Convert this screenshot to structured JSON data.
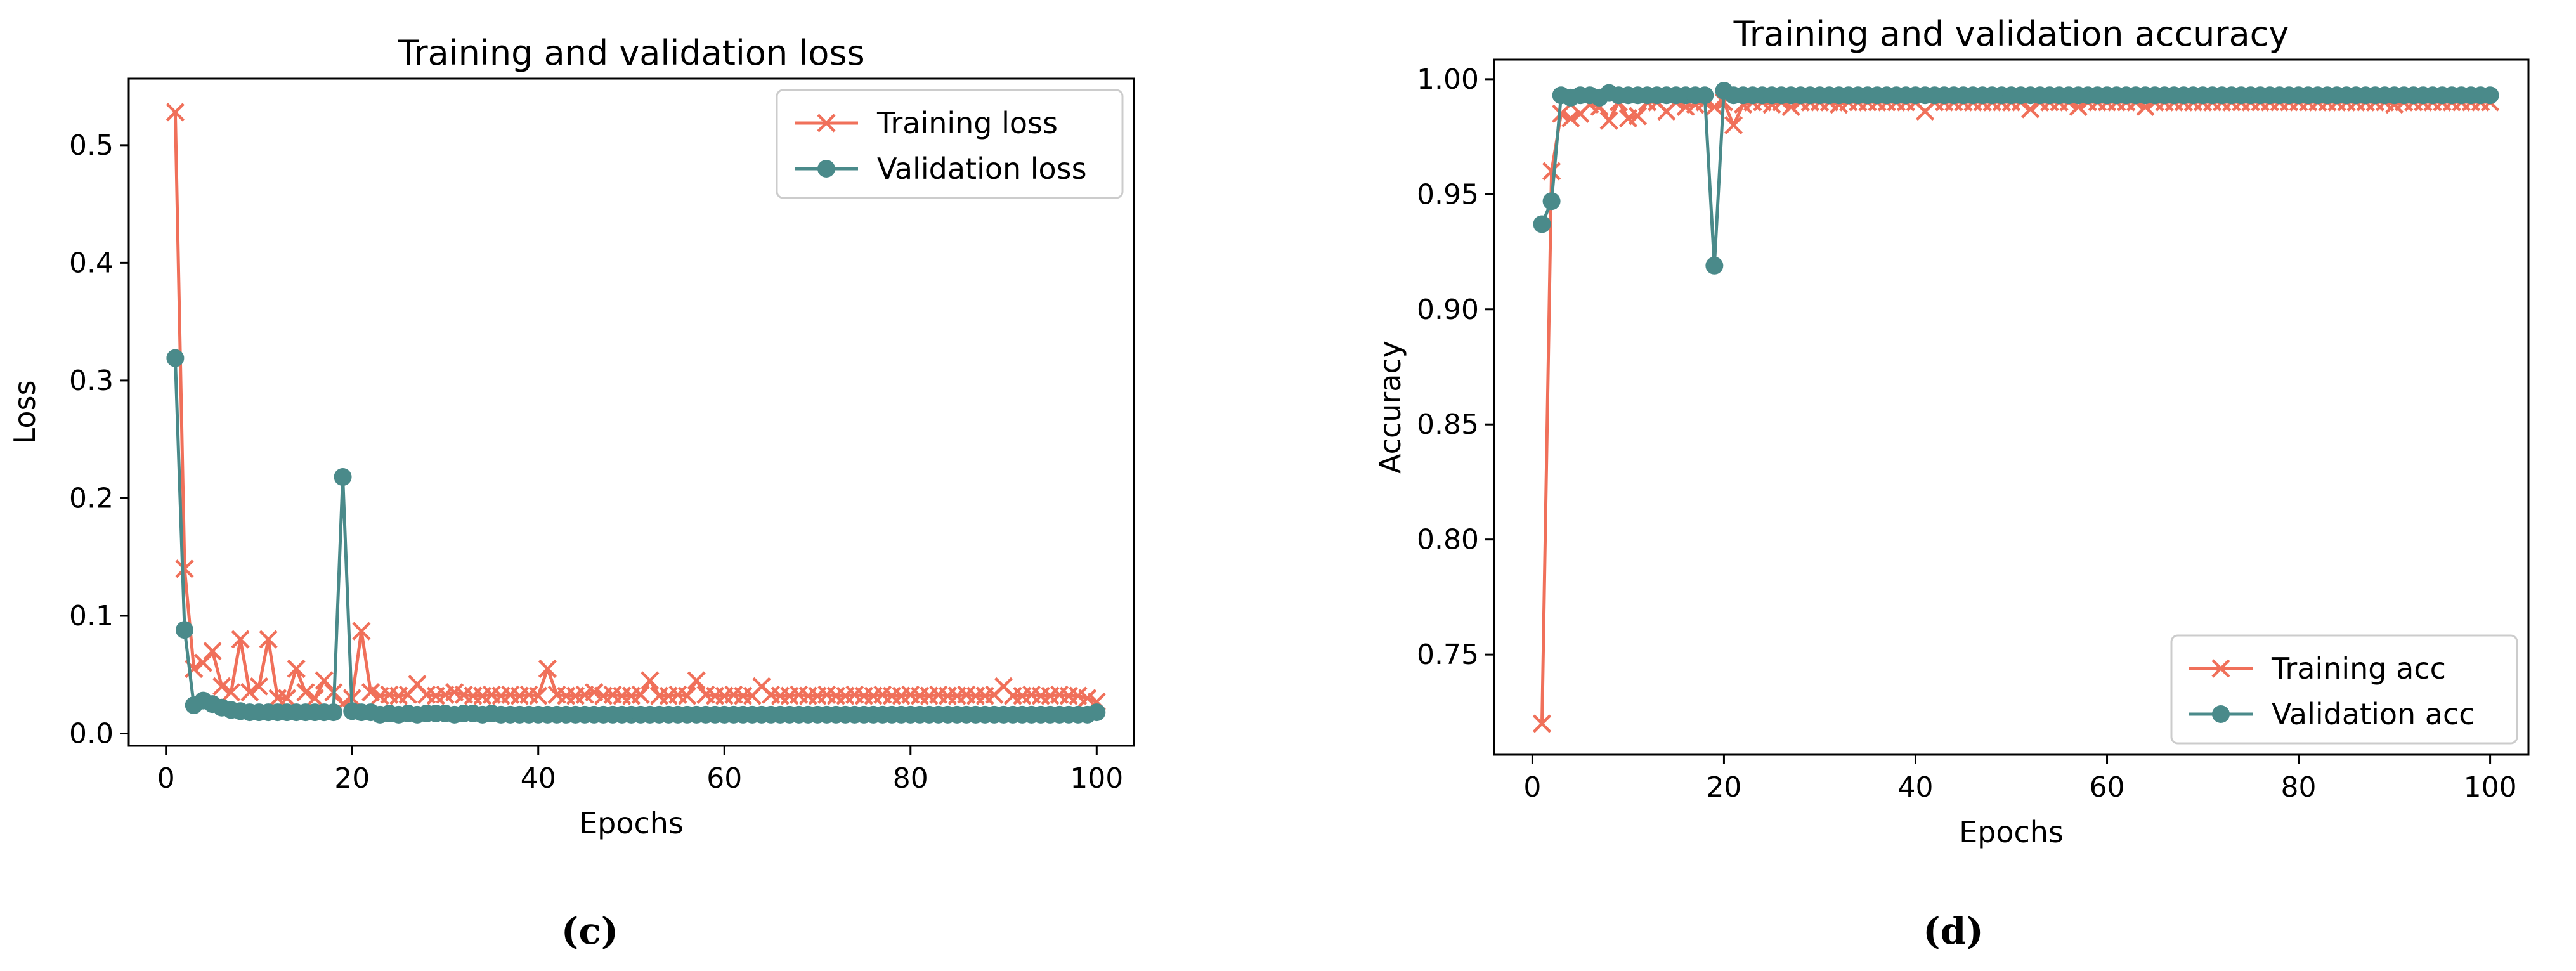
{
  "colors": {
    "training": "#f0705a",
    "validation": "#4a8a8a",
    "axis": "#000000",
    "legend_border": "#cccccc"
  },
  "chart_data": [
    {
      "type": "line",
      "caption": "(c)",
      "title": "Training and validation loss",
      "xlabel": "Epochs",
      "ylabel": "Loss",
      "xlim": [
        -4,
        104
      ],
      "ylim": [
        -0.0105,
        0.5565
      ],
      "xticks": [
        0,
        20,
        40,
        60,
        80,
        100
      ],
      "xtick_labels": [
        "0",
        "20",
        "40",
        "60",
        "80",
        "100"
      ],
      "yticks": [
        0.0,
        0.1,
        0.2,
        0.3,
        0.4,
        0.5
      ],
      "ytick_labels": [
        "0.0",
        "0.1",
        "0.2",
        "0.3",
        "0.4",
        "0.5"
      ],
      "grid": false,
      "legend_position": "top-right",
      "series": [
        {
          "name": "Training loss",
          "marker": "x",
          "color": "training",
          "x": [
            1,
            2,
            3,
            4,
            5,
            6,
            7,
            8,
            9,
            10,
            11,
            12,
            13,
            14,
            15,
            16,
            17,
            18,
            19,
            20,
            21,
            22,
            23,
            24,
            25,
            26,
            27,
            28,
            29,
            30,
            31,
            32,
            33,
            34,
            35,
            36,
            37,
            38,
            39,
            40,
            41,
            42,
            43,
            44,
            45,
            46,
            47,
            48,
            49,
            50,
            51,
            52,
            53,
            54,
            55,
            56,
            57,
            58,
            59,
            60,
            61,
            62,
            63,
            64,
            65,
            66,
            67,
            68,
            69,
            70,
            71,
            72,
            73,
            74,
            75,
            76,
            77,
            78,
            79,
            80,
            81,
            82,
            83,
            84,
            85,
            86,
            87,
            88,
            89,
            90,
            91,
            92,
            93,
            94,
            95,
            96,
            97,
            98,
            99,
            100
          ],
          "values": [
            0.528,
            0.14,
            0.055,
            0.06,
            0.07,
            0.04,
            0.035,
            0.08,
            0.035,
            0.04,
            0.08,
            0.03,
            0.03,
            0.055,
            0.035,
            0.03,
            0.045,
            0.035,
            0.025,
            0.03,
            0.087,
            0.035,
            0.032,
            0.033,
            0.032,
            0.033,
            0.042,
            0.033,
            0.032,
            0.033,
            0.035,
            0.033,
            0.032,
            0.032,
            0.033,
            0.032,
            0.033,
            0.032,
            0.033,
            0.032,
            0.055,
            0.033,
            0.032,
            0.032,
            0.033,
            0.035,
            0.032,
            0.033,
            0.032,
            0.032,
            0.033,
            0.045,
            0.032,
            0.032,
            0.033,
            0.032,
            0.045,
            0.033,
            0.032,
            0.032,
            0.033,
            0.032,
            0.032,
            0.04,
            0.033,
            0.032,
            0.032,
            0.033,
            0.032,
            0.032,
            0.033,
            0.032,
            0.032,
            0.033,
            0.032,
            0.032,
            0.033,
            0.032,
            0.032,
            0.033,
            0.032,
            0.032,
            0.033,
            0.032,
            0.032,
            0.033,
            0.032,
            0.032,
            0.033,
            0.04,
            0.032,
            0.032,
            0.033,
            0.032,
            0.032,
            0.033,
            0.032,
            0.032,
            0.03,
            0.027
          ]
        },
        {
          "name": "Validation loss",
          "marker": "o",
          "color": "validation",
          "x": [
            1,
            2,
            3,
            4,
            5,
            6,
            7,
            8,
            9,
            10,
            11,
            12,
            13,
            14,
            15,
            16,
            17,
            18,
            19,
            20,
            21,
            22,
            23,
            24,
            25,
            26,
            27,
            28,
            29,
            30,
            31,
            32,
            33,
            34,
            35,
            36,
            37,
            38,
            39,
            40,
            41,
            42,
            43,
            44,
            45,
            46,
            47,
            48,
            49,
            50,
            51,
            52,
            53,
            54,
            55,
            56,
            57,
            58,
            59,
            60,
            61,
            62,
            63,
            64,
            65,
            66,
            67,
            68,
            69,
            70,
            71,
            72,
            73,
            74,
            75,
            76,
            77,
            78,
            79,
            80,
            81,
            82,
            83,
            84,
            85,
            86,
            87,
            88,
            89,
            90,
            91,
            92,
            93,
            94,
            95,
            96,
            97,
            98,
            99,
            100
          ],
          "values": [
            0.319,
            0.088,
            0.024,
            0.028,
            0.025,
            0.022,
            0.02,
            0.019,
            0.018,
            0.018,
            0.018,
            0.018,
            0.018,
            0.018,
            0.018,
            0.018,
            0.018,
            0.018,
            0.218,
            0.019,
            0.018,
            0.018,
            0.016,
            0.017,
            0.016,
            0.017,
            0.016,
            0.017,
            0.017,
            0.017,
            0.016,
            0.017,
            0.017,
            0.016,
            0.017,
            0.016,
            0.016,
            0.016,
            0.016,
            0.016,
            0.016,
            0.016,
            0.016,
            0.016,
            0.016,
            0.016,
            0.016,
            0.016,
            0.016,
            0.016,
            0.016,
            0.016,
            0.016,
            0.016,
            0.016,
            0.016,
            0.016,
            0.016,
            0.016,
            0.016,
            0.016,
            0.016,
            0.016,
            0.016,
            0.016,
            0.016,
            0.016,
            0.016,
            0.016,
            0.016,
            0.016,
            0.016,
            0.016,
            0.016,
            0.016,
            0.016,
            0.016,
            0.016,
            0.016,
            0.016,
            0.016,
            0.016,
            0.016,
            0.016,
            0.016,
            0.016,
            0.016,
            0.016,
            0.016,
            0.016,
            0.016,
            0.016,
            0.016,
            0.016,
            0.016,
            0.016,
            0.016,
            0.016,
            0.016,
            0.018
          ]
        }
      ]
    },
    {
      "type": "line",
      "caption": "(d)",
      "title": "Training and validation accuracy",
      "xlabel": "Epochs",
      "ylabel": "Accuracy",
      "xlim": [
        -4,
        104
      ],
      "ylim": [
        0.7065,
        1.0085
      ],
      "xticks": [
        0,
        20,
        40,
        60,
        80,
        100
      ],
      "xtick_labels": [
        "0",
        "20",
        "40",
        "60",
        "80",
        "100"
      ],
      "yticks": [
        0.75,
        0.8,
        0.85,
        0.9,
        0.95,
        1.0
      ],
      "ytick_labels": [
        "0.75",
        "0.80",
        "0.85",
        "0.90",
        "0.95",
        "1.00"
      ],
      "grid": false,
      "legend_position": "bottom-right",
      "series": [
        {
          "name": "Training acc",
          "marker": "x",
          "color": "training",
          "x": [
            1,
            2,
            3,
            4,
            5,
            6,
            7,
            8,
            9,
            10,
            11,
            12,
            13,
            14,
            15,
            16,
            17,
            18,
            19,
            20,
            21,
            22,
            23,
            24,
            25,
            26,
            27,
            28,
            29,
            30,
            31,
            32,
            33,
            34,
            35,
            36,
            37,
            38,
            39,
            40,
            41,
            42,
            43,
            44,
            45,
            46,
            47,
            48,
            49,
            50,
            51,
            52,
            53,
            54,
            55,
            56,
            57,
            58,
            59,
            60,
            61,
            62,
            63,
            64,
            65,
            66,
            67,
            68,
            69,
            70,
            71,
            72,
            73,
            74,
            75,
            76,
            77,
            78,
            79,
            80,
            81,
            82,
            83,
            84,
            85,
            86,
            87,
            88,
            89,
            90,
            91,
            92,
            93,
            94,
            95,
            96,
            97,
            98,
            99,
            100
          ],
          "values": [
            0.72,
            0.96,
            0.985,
            0.983,
            0.985,
            0.989,
            0.988,
            0.982,
            0.99,
            0.983,
            0.984,
            0.99,
            0.99,
            0.986,
            0.99,
            0.988,
            0.989,
            0.99,
            0.988,
            0.99,
            0.98,
            0.989,
            0.99,
            0.99,
            0.989,
            0.99,
            0.988,
            0.99,
            0.99,
            0.99,
            0.99,
            0.989,
            0.99,
            0.99,
            0.99,
            0.99,
            0.99,
            0.99,
            0.99,
            0.99,
            0.986,
            0.99,
            0.99,
            0.99,
            0.99,
            0.99,
            0.99,
            0.99,
            0.99,
            0.99,
            0.99,
            0.987,
            0.99,
            0.99,
            0.99,
            0.99,
            0.988,
            0.99,
            0.99,
            0.99,
            0.99,
            0.99,
            0.99,
            0.988,
            0.99,
            0.99,
            0.99,
            0.99,
            0.99,
            0.99,
            0.99,
            0.99,
            0.99,
            0.99,
            0.99,
            0.99,
            0.99,
            0.99,
            0.99,
            0.99,
            0.99,
            0.99,
            0.99,
            0.99,
            0.99,
            0.99,
            0.99,
            0.99,
            0.99,
            0.989,
            0.99,
            0.99,
            0.99,
            0.99,
            0.99,
            0.99,
            0.99,
            0.99,
            0.99,
            0.99
          ]
        },
        {
          "name": "Validation acc",
          "marker": "o",
          "color": "validation",
          "x": [
            1,
            2,
            3,
            4,
            5,
            6,
            7,
            8,
            9,
            10,
            11,
            12,
            13,
            14,
            15,
            16,
            17,
            18,
            19,
            20,
            21,
            22,
            23,
            24,
            25,
            26,
            27,
            28,
            29,
            30,
            31,
            32,
            33,
            34,
            35,
            36,
            37,
            38,
            39,
            40,
            41,
            42,
            43,
            44,
            45,
            46,
            47,
            48,
            49,
            50,
            51,
            52,
            53,
            54,
            55,
            56,
            57,
            58,
            59,
            60,
            61,
            62,
            63,
            64,
            65,
            66,
            67,
            68,
            69,
            70,
            71,
            72,
            73,
            74,
            75,
            76,
            77,
            78,
            79,
            80,
            81,
            82,
            83,
            84,
            85,
            86,
            87,
            88,
            89,
            90,
            91,
            92,
            93,
            94,
            95,
            96,
            97,
            98,
            99,
            100
          ],
          "values": [
            0.937,
            0.947,
            0.993,
            0.992,
            0.993,
            0.993,
            0.992,
            0.994,
            0.993,
            0.993,
            0.993,
            0.993,
            0.993,
            0.993,
            0.993,
            0.993,
            0.993,
            0.993,
            0.919,
            0.995,
            0.993,
            0.993,
            0.993,
            0.993,
            0.993,
            0.993,
            0.993,
            0.993,
            0.993,
            0.993,
            0.993,
            0.993,
            0.993,
            0.993,
            0.993,
            0.993,
            0.993,
            0.993,
            0.993,
            0.993,
            0.993,
            0.993,
            0.993,
            0.993,
            0.993,
            0.993,
            0.993,
            0.993,
            0.993,
            0.993,
            0.993,
            0.993,
            0.993,
            0.993,
            0.993,
            0.993,
            0.993,
            0.993,
            0.993,
            0.993,
            0.993,
            0.993,
            0.993,
            0.993,
            0.993,
            0.993,
            0.993,
            0.993,
            0.993,
            0.993,
            0.993,
            0.993,
            0.993,
            0.993,
            0.993,
            0.993,
            0.993,
            0.993,
            0.993,
            0.993,
            0.993,
            0.993,
            0.993,
            0.993,
            0.993,
            0.993,
            0.993,
            0.993,
            0.993,
            0.993,
            0.993,
            0.993,
            0.993,
            0.993,
            0.993,
            0.993,
            0.993,
            0.993,
            0.993,
            0.993
          ]
        }
      ]
    }
  ]
}
